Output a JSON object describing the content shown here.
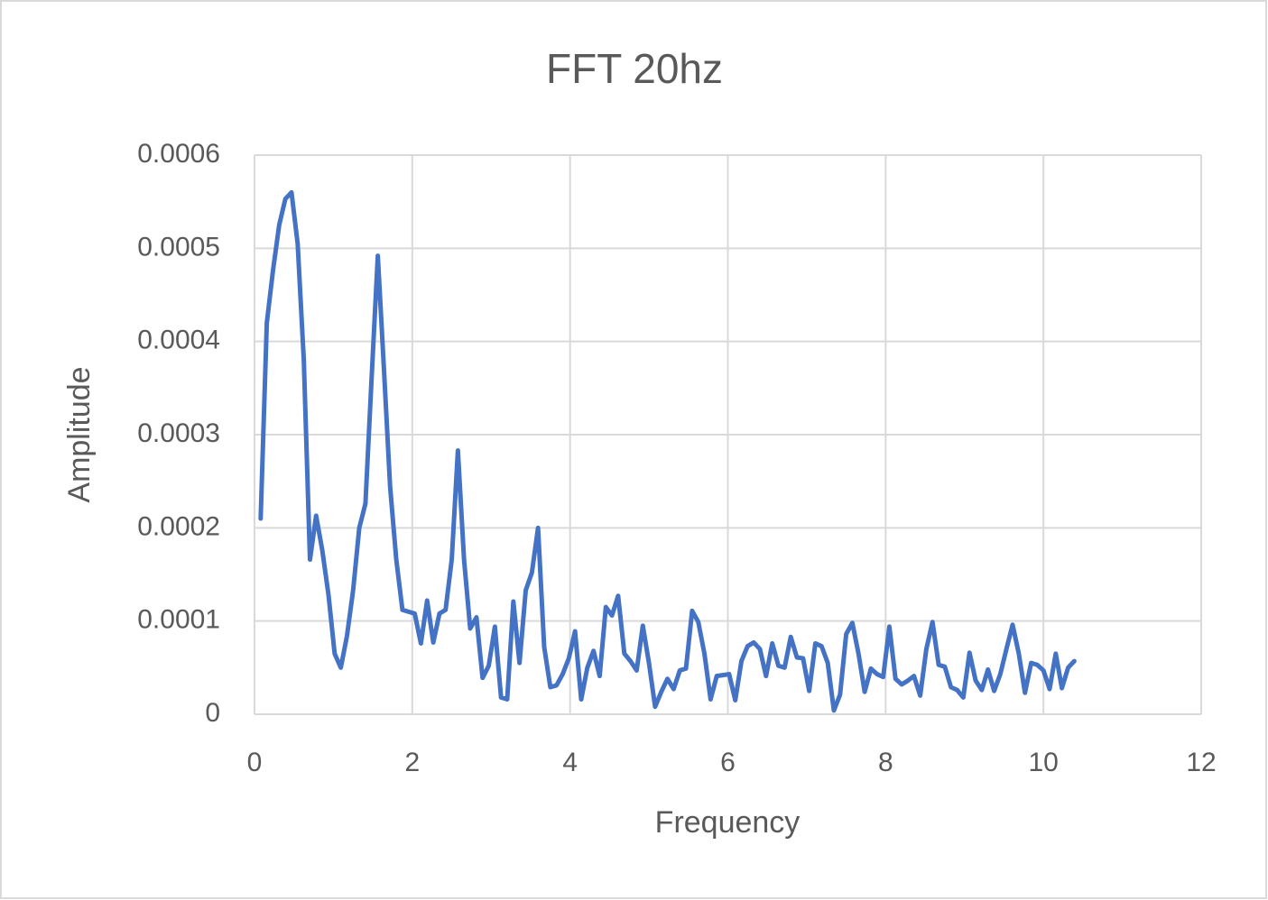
{
  "chart_data": {
    "type": "line",
    "title": "FFT 20hz",
    "x_label": "Frequency",
    "y_label": "Amplitude",
    "xlim": [
      0,
      12
    ],
    "xticks": [
      0,
      2,
      4,
      6,
      8,
      10,
      12
    ],
    "ylim": [
      0,
      0.0006
    ],
    "yticks": [
      0,
      0.0001,
      0.0002,
      0.0003,
      0.0004,
      0.0005,
      0.0006
    ],
    "grid": true,
    "x": [
      0.078,
      0.156,
      0.234,
      0.313,
      0.391,
      0.469,
      0.547,
      0.625,
      0.703,
      0.781,
      0.859,
      0.938,
      1.016,
      1.094,
      1.172,
      1.25,
      1.328,
      1.406,
      1.484,
      1.563,
      1.641,
      1.719,
      1.797,
      1.875,
      1.953,
      2.031,
      2.109,
      2.188,
      2.266,
      2.344,
      2.422,
      2.5,
      2.578,
      2.656,
      2.734,
      2.813,
      2.891,
      2.969,
      3.047,
      3.125,
      3.203,
      3.281,
      3.359,
      3.438,
      3.516,
      3.594,
      3.672,
      3.75,
      3.828,
      3.906,
      3.984,
      4.063,
      4.141,
      4.219,
      4.297,
      4.375,
      4.453,
      4.531,
      4.609,
      4.688,
      4.766,
      4.844,
      4.922,
      5,
      5.078,
      5.156,
      5.234,
      5.313,
      5.391,
      5.469,
      5.547,
      5.625,
      5.703,
      5.781,
      5.859,
      5.938,
      6.016,
      6.094,
      6.172,
      6.25,
      6.328,
      6.406,
      6.484,
      6.563,
      6.641,
      6.719,
      6.797,
      6.875,
      6.953,
      7.031,
      7.109,
      7.188,
      7.266,
      7.344,
      7.422,
      7.5,
      7.578,
      7.656,
      7.734,
      7.813,
      7.891,
      7.969,
      8.047,
      8.125,
      8.203,
      8.281,
      8.359,
      8.438,
      8.516,
      8.594,
      8.672,
      8.75,
      8.828,
      8.906,
      8.984,
      9.063,
      9.141,
      9.219,
      9.297,
      9.375,
      9.453,
      9.531,
      9.609,
      9.688,
      9.766,
      9.844,
      9.922,
      10,
      10.078,
      10.156,
      10.234,
      10.313,
      10.391
    ],
    "series": [
      {
        "color": "#4472c4",
        "values": [
          0.00021,
          0.00042,
          0.000476,
          0.000525,
          0.000553,
          0.00056,
          0.000505,
          0.00038,
          0.000166,
          0.000213,
          0.000176,
          0.000128,
          6.5e-05,
          5e-05,
          8.4e-05,
          0.000133,
          0.0002,
          0.000226,
          0.00036,
          0.000492,
          0.00037,
          0.000244,
          0.000166,
          0.000112,
          0.00011,
          0.000108,
          7.6e-05,
          0.000122,
          7.7e-05,
          0.000108,
          0.000112,
          0.000166,
          0.000283,
          0.000166,
          9.2e-05,
          0.000104,
          3.9e-05,
          5.2e-05,
          9.4e-05,
          1.8e-05,
          1.6e-05,
          0.000121,
          5.5e-05,
          0.000133,
          0.000152,
          0.0002,
          7.2e-05,
          2.9e-05,
          3.1e-05,
          4.3e-05,
          6e-05,
          8.9e-05,
          1.6e-05,
          5e-05,
          6.8e-05,
          4.1e-05,
          0.000115,
          0.000106,
          0.000127,
          6.5e-05,
          5.7e-05,
          4.7e-05,
          9.5e-05,
          5.5e-05,
          8e-06,
          2.4e-05,
          3.8e-05,
          2.7e-05,
          4.7e-05,
          4.9e-05,
          0.000111,
          9.9e-05,
          6.5e-05,
          1.6e-05,
          4.1e-05,
          4.2e-05,
          4.3e-05,
          1.5e-05,
          5.7e-05,
          7.3e-05,
          7.7e-05,
          7e-05,
          4.1e-05,
          7.6e-05,
          5.2e-05,
          5e-05,
          8.3e-05,
          6.1e-05,
          6e-05,
          2.5e-05,
          7.6e-05,
          7.3e-05,
          5.5e-05,
          4e-06,
          2.1e-05,
          8.6e-05,
          9.8e-05,
          6.5e-05,
          2.4e-05,
          4.9e-05,
          4.3e-05,
          4e-05,
          9.4e-05,
          3.8e-05,
          3.2e-05,
          3.6e-05,
          4.1e-05,
          2e-05,
          7e-05,
          9.9e-05,
          5.3e-05,
          5.1e-05,
          2.9e-05,
          2.6e-05,
          1.8e-05,
          6.6e-05,
          3.6e-05,
          2.6e-05,
          4.8e-05,
          2.5e-05,
          4.3e-05,
          7e-05,
          9.6e-05,
          6.5e-05,
          2.3e-05,
          5.5e-05,
          5.3e-05,
          4.7e-05,
          2.7e-05,
          6.5e-05,
          2.8e-05,
          5e-05,
          5.7e-05
        ]
      }
    ]
  }
}
